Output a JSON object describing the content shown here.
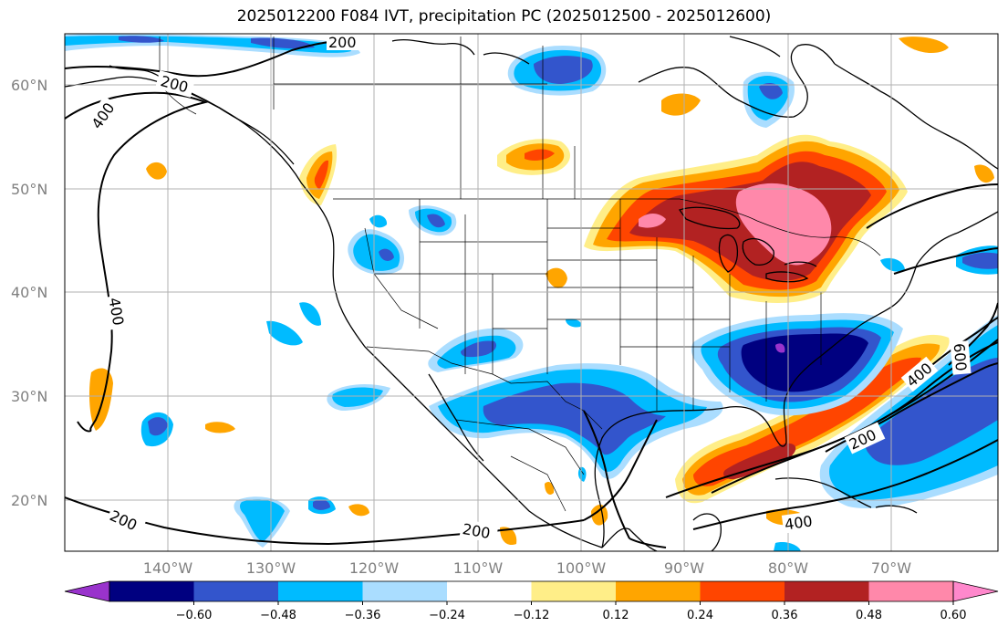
{
  "title": "2025012200 F084 IVT, precipitation PC (2025012500 - 2025012600)",
  "map": {
    "lat_labels": [
      "60°N",
      "50°N",
      "40°N",
      "30°N",
      "20°N"
    ],
    "lon_labels": [
      "140°W",
      "130°W",
      "120°W",
      "110°W",
      "100°W",
      "90°W",
      "80°W",
      "70°W"
    ],
    "contour_labels": [
      "200",
      "200",
      "400",
      "400",
      "200",
      "200",
      "200",
      "400",
      "600",
      "400"
    ]
  },
  "colorbar": {
    "tick_labels": [
      "−0.60",
      "−0.48",
      "−0.36",
      "−0.24",
      "−0.12",
      "0.12",
      "0.24",
      "0.36",
      "0.48",
      "0.60"
    ],
    "colors": [
      "#9933cc",
      "#000080",
      "#3355cc",
      "#00bbff",
      "#aaddff",
      "#ffffff",
      "#ffee88",
      "#ffa500",
      "#ff4500",
      "#b22222",
      "#ff88aa",
      "#ff88cc"
    ]
  }
}
